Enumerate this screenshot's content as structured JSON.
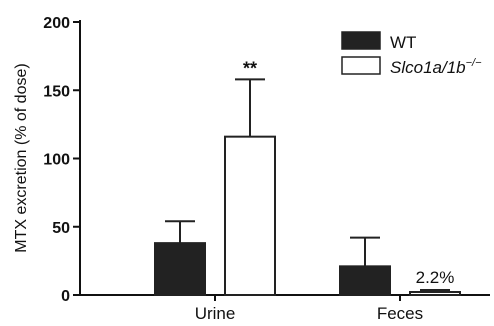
{
  "chart_data": {
    "type": "bar",
    "categories": [
      "Urine",
      "Feces"
    ],
    "ylabel": "MTX excretion (% of dose)",
    "ylim": [
      0,
      200
    ],
    "yticks": [
      0,
      50,
      100,
      150,
      200
    ],
    "grid": false,
    "legend_position": "top-right",
    "series": [
      {
        "name": "WT",
        "values": [
          38,
          21
        ],
        "error": [
          16,
          21
        ],
        "color": "#222222",
        "fill": "solid"
      },
      {
        "name": "Slco1a/1b",
        "name_superscript": "−/−",
        "values": [
          116,
          2.2
        ],
        "error": [
          42,
          1.5
        ],
        "color": "#222222",
        "fill": "white"
      }
    ],
    "annotations": [
      {
        "text": "**",
        "category": "Urine",
        "series": 1
      },
      {
        "text": "2.2%",
        "category": "Feces",
        "series": 1
      }
    ]
  }
}
